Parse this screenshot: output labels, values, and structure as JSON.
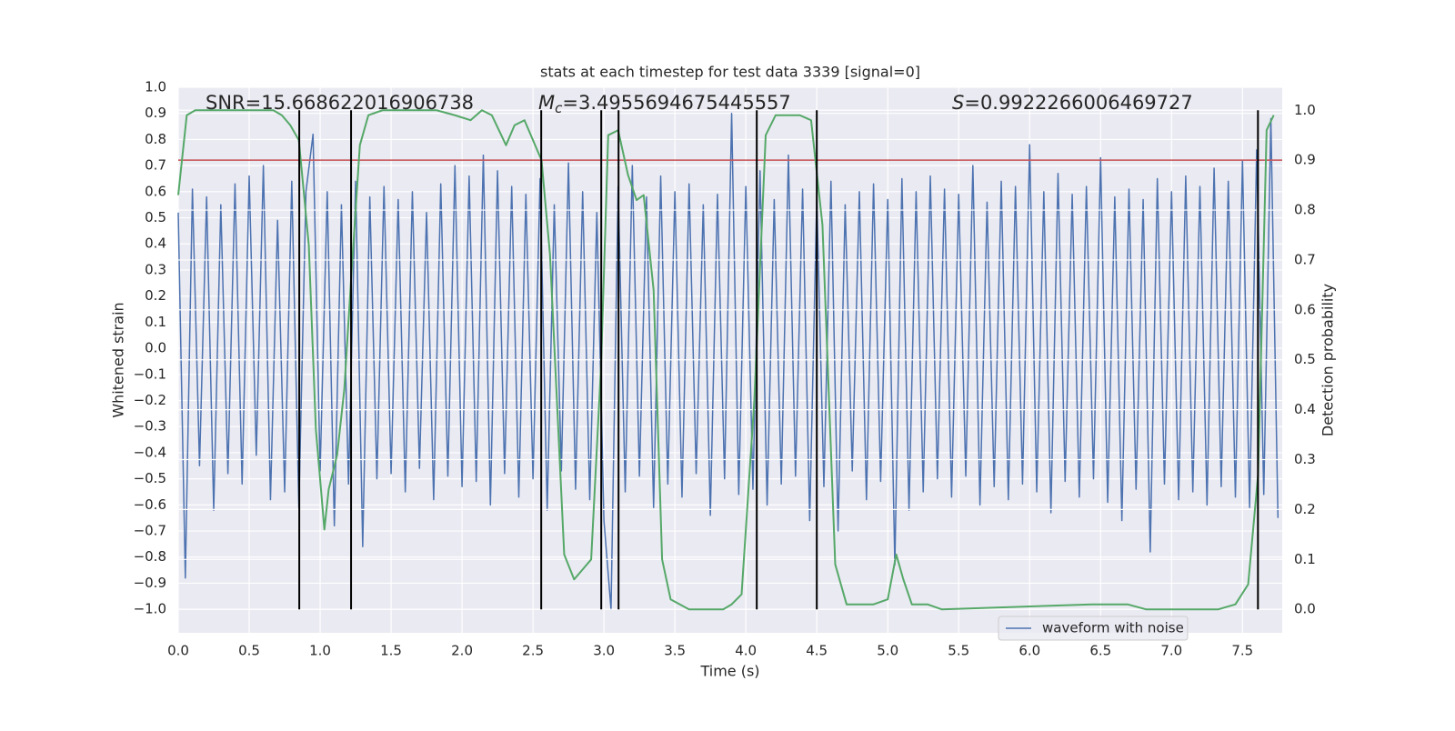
{
  "chart_data": {
    "type": "line",
    "title": "stats at each timestep for test data 3339 [signal=0]",
    "xlabel": "Time (s)",
    "ylabel": "Whitened strain",
    "y2label": "Detection probability",
    "snr_annotation": "SNR=15.668622016906738",
    "mc_annotation": [
      "M",
      "c",
      "=3.4955694675445557"
    ],
    "s_annotation": [
      "S",
      "=0.9922266006469727"
    ],
    "xlim": [
      0,
      7.78
    ],
    "ylim": [
      -1.09,
      1.0
    ],
    "y2lim": [
      -0.047,
      1.046
    ],
    "xticks": [
      {
        "value": 0,
        "label": "0.0"
      },
      {
        "value": 0.5,
        "label": "0.5"
      },
      {
        "value": 1,
        "label": "1.0"
      },
      {
        "value": 1.5,
        "label": "1.5"
      },
      {
        "value": 2,
        "label": "2.0"
      },
      {
        "value": 2.5,
        "label": "2.5"
      },
      {
        "value": 3,
        "label": "3.0"
      },
      {
        "value": 3.5,
        "label": "3.5"
      },
      {
        "value": 4,
        "label": "4.0"
      },
      {
        "value": 4.5,
        "label": "4.5"
      },
      {
        "value": 5,
        "label": "5.0"
      },
      {
        "value": 5.5,
        "label": "5.5"
      },
      {
        "value": 6,
        "label": "6.0"
      },
      {
        "value": 6.5,
        "label": "6.5"
      },
      {
        "value": 7,
        "label": "7.0"
      },
      {
        "value": 7.5,
        "label": "7.5"
      }
    ],
    "yticks": [
      {
        "value": 1,
        "label": "1.0"
      },
      {
        "value": 0.9,
        "label": "0.9"
      },
      {
        "value": 0.8,
        "label": "0.8"
      },
      {
        "value": 0.7,
        "label": "0.7"
      },
      {
        "value": 0.6,
        "label": "0.6"
      },
      {
        "value": 0.5,
        "label": "0.5"
      },
      {
        "value": 0.4,
        "label": "0.4"
      },
      {
        "value": 0.3,
        "label": "0.3"
      },
      {
        "value": 0.2,
        "label": "0.2"
      },
      {
        "value": 0.1,
        "label": "0.1"
      },
      {
        "value": 0,
        "label": "0.0"
      },
      {
        "value": -0.1,
        "label": "−0.1"
      },
      {
        "value": -0.2,
        "label": "−0.2"
      },
      {
        "value": -0.3,
        "label": "−0.3"
      },
      {
        "value": -0.4,
        "label": "−0.4"
      },
      {
        "value": -0.5,
        "label": "−0.5"
      },
      {
        "value": -0.6,
        "label": "−0.6"
      },
      {
        "value": -0.7,
        "label": "−0.7"
      },
      {
        "value": -0.8,
        "label": "−0.8"
      },
      {
        "value": -0.9,
        "label": "−0.9"
      },
      {
        "value": -1,
        "label": "−1.0"
      }
    ],
    "y2ticks": [
      {
        "value": 0,
        "label": "0.0"
      },
      {
        "value": 0.1,
        "label": "0.1"
      },
      {
        "value": 0.2,
        "label": "0.2"
      },
      {
        "value": 0.3,
        "label": "0.3"
      },
      {
        "value": 0.4,
        "label": "0.4"
      },
      {
        "value": 0.5,
        "label": "0.5"
      },
      {
        "value": 0.6,
        "label": "0.6"
      },
      {
        "value": 0.7,
        "label": "0.7"
      },
      {
        "value": 0.8,
        "label": "0.8"
      },
      {
        "value": 0.9,
        "label": "0.9"
      },
      {
        "value": 1,
        "label": "1.0"
      }
    ],
    "grid": true,
    "legend": "lower right",
    "series": [
      {
        "name": "waveform with noise",
        "color": "#4c72b0",
        "x": [
          0,
          0.05,
          0.1,
          0.15,
          0.2,
          0.25,
          0.3,
          0.35,
          0.4,
          0.45,
          0.5,
          0.55,
          0.6,
          0.65,
          0.7,
          0.75,
          0.8,
          0.85,
          0.9,
          0.95,
          1,
          1.05,
          1.1,
          1.15,
          1.2,
          1.25,
          1.3,
          1.35,
          1.4,
          1.45,
          1.5,
          1.55,
          1.6,
          1.65,
          1.7,
          1.75,
          1.8,
          1.85,
          1.9,
          1.95,
          2,
          2.05,
          2.1,
          2.15,
          2.2,
          2.25,
          2.3,
          2.35,
          2.4,
          2.45,
          2.5,
          2.55,
          2.6,
          2.65,
          2.7,
          2.75,
          2.8,
          2.85,
          2.9,
          2.95,
          3,
          3.05,
          3.1,
          3.15,
          3.2,
          3.25,
          3.3,
          3.35,
          3.4,
          3.45,
          3.5,
          3.55,
          3.6,
          3.65,
          3.7,
          3.75,
          3.8,
          3.85,
          3.9,
          3.95,
          4,
          4.05,
          4.1,
          4.15,
          4.2,
          4.25,
          4.3,
          4.35,
          4.4,
          4.45,
          4.5,
          4.55,
          4.6,
          4.65,
          4.7,
          4.75,
          4.8,
          4.85,
          4.9,
          4.95,
          5,
          5.05,
          5.1,
          5.15,
          5.2,
          5.25,
          5.3,
          5.35,
          5.4,
          5.45,
          5.5,
          5.55,
          5.6,
          5.65,
          5.7,
          5.75,
          5.8,
          5.85,
          5.9,
          5.95,
          6,
          6.05,
          6.1,
          6.15,
          6.2,
          6.25,
          6.3,
          6.35,
          6.4,
          6.45,
          6.5,
          6.55,
          6.6,
          6.65,
          6.7,
          6.75,
          6.8,
          6.85,
          6.9,
          6.95,
          7,
          7.05,
          7.1,
          7.15,
          7.2,
          7.25,
          7.3,
          7.35,
          7.4,
          7.45,
          7.5,
          7.55,
          7.6,
          7.65,
          7.7,
          7.75
        ],
        "values": [
          0.52,
          -0.88,
          0.61,
          -0.45,
          0.58,
          -0.62,
          0.55,
          -0.48,
          0.63,
          -0.52,
          0.66,
          -0.41,
          0.7,
          -0.58,
          0.49,
          -0.55,
          0.64,
          -0.61,
          0.6,
          0.82,
          -0.47,
          0.6,
          -0.68,
          0.55,
          -0.52,
          0.64,
          -0.76,
          0.58,
          -0.5,
          0.62,
          -0.48,
          0.57,
          -0.55,
          0.6,
          -0.46,
          0.52,
          -0.58,
          0.63,
          -0.49,
          0.7,
          -0.53,
          0.66,
          -0.51,
          0.74,
          -0.6,
          0.68,
          -0.48,
          0.62,
          -0.57,
          0.59,
          -0.5,
          0.65,
          -0.62,
          0.55,
          -0.47,
          0.71,
          -0.54,
          0.6,
          -0.58,
          0.52,
          -0.66,
          -1.0,
          0.62,
          -0.55,
          0.7,
          -0.49,
          0.58,
          -0.61,
          0.66,
          -0.52,
          0.6,
          -0.57,
          0.63,
          -0.48,
          0.55,
          -0.64,
          0.59,
          -0.5,
          0.9,
          -0.56,
          0.62,
          -0.54,
          0.68,
          -0.6,
          0.57,
          -0.52,
          0.74,
          -0.49,
          0.61,
          -0.66,
          0.58,
          -0.53,
          0.64,
          -0.7,
          0.55,
          -0.47,
          0.6,
          -0.58,
          0.63,
          -0.51,
          0.57,
          -0.83,
          0.65,
          -0.62,
          0.6,
          -0.55,
          0.66,
          -0.5,
          0.61,
          -0.57,
          0.59,
          -0.49,
          0.7,
          -0.6,
          0.56,
          -0.53,
          0.64,
          -0.58,
          0.62,
          -0.52,
          0.78,
          -0.55,
          0.6,
          -0.63,
          0.67,
          -0.51,
          0.59,
          -0.57,
          0.62,
          -0.5,
          0.73,
          -0.59,
          0.58,
          -0.66,
          0.61,
          -0.54,
          0.57,
          -0.78,
          0.65,
          -0.52,
          0.6,
          -0.58,
          0.66,
          -0.55,
          0.62,
          -0.6,
          0.69,
          -0.53,
          0.64,
          -0.57,
          0.72,
          -0.61,
          0.76,
          -0.56,
          0.88,
          -0.65
        ]
      },
      {
        "color": "#55a868",
        "axis": "y2",
        "x": [
          0,
          0.06,
          0.12,
          0.67,
          0.73,
          0.79,
          0.85,
          0.92,
          0.97,
          1.03,
          1.06,
          1.12,
          1.17,
          1.22,
          1.28,
          1.34,
          1.44,
          1.82,
          1.95,
          2.06,
          2.14,
          2.21,
          2.31,
          2.37,
          2.44,
          2.56,
          2.62,
          2.72,
          2.79,
          2.91,
          2.98,
          3.03,
          3.1,
          3.17,
          3.23,
          3.28,
          3.35,
          3.41,
          3.47,
          3.6,
          3.84,
          3.9,
          3.97,
          4.06,
          4.14,
          4.21,
          4.31,
          4.38,
          4.46,
          4.54,
          4.63,
          4.71,
          4.9,
          5.0,
          5.06,
          5.11,
          5.17,
          5.28,
          5.38,
          6.44,
          6.6,
          6.69,
          6.82,
          7.33,
          7.45,
          7.54,
          7.61,
          7.67,
          7.72
        ],
        "values": [
          0.83,
          0.99,
          1.0,
          1.0,
          0.99,
          0.97,
          0.94,
          0.73,
          0.36,
          0.16,
          0.24,
          0.31,
          0.44,
          0.67,
          0.93,
          0.99,
          1.0,
          1.0,
          0.99,
          0.98,
          1.0,
          0.99,
          0.93,
          0.97,
          0.98,
          0.9,
          0.71,
          0.11,
          0.06,
          0.1,
          0.49,
          0.95,
          0.96,
          0.87,
          0.82,
          0.83,
          0.64,
          0.1,
          0.02,
          0.0,
          0.0,
          0.01,
          0.03,
          0.42,
          0.95,
          0.99,
          0.99,
          0.99,
          0.98,
          0.77,
          0.09,
          0.01,
          0.01,
          0.02,
          0.11,
          0.06,
          0.01,
          0.01,
          0.0,
          0.01,
          0.01,
          0.01,
          0.0,
          0.0,
          0.01,
          0.05,
          0.27,
          0.96,
          0.99
        ]
      }
    ],
    "hline": {
      "y": 0.9,
      "axis": "y2",
      "color": "#c44e52"
    },
    "vlines": {
      "x": [
        0.853,
        1.218,
        2.558,
        2.981,
        3.103,
        4.077,
        4.5,
        7.609
      ],
      "ymin": 0,
      "ymax": 1,
      "axis": "y2",
      "color": "#000000"
    }
  }
}
